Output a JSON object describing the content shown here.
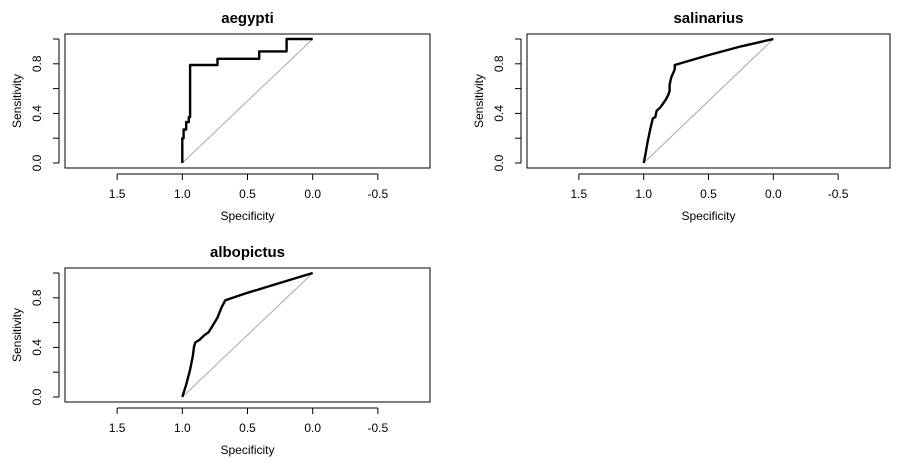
{
  "chart_data": [
    {
      "type": "line",
      "title": "aegypti",
      "xlabel": "Specificity",
      "ylabel": "Sensitivity",
      "x_reversed": true,
      "xlim": [
        1.9,
        -0.9
      ],
      "ylim": [
        0,
        1
      ],
      "x_ticks": [
        "1.5",
        "1.0",
        "0.5",
        "0.0",
        "-0.5"
      ],
      "y_ticks": [
        "0.0",
        "0.4",
        "0.8"
      ],
      "x_tick_values": [
        1.5,
        1.0,
        0.5,
        0.0,
        -0.5
      ],
      "y_tick_values": [
        0.0,
        0.4,
        0.8
      ],
      "reference_line": [
        [
          1,
          0
        ],
        [
          0,
          1
        ]
      ],
      "series": [
        {
          "points": [
            [
              1.0,
              0.0
            ],
            [
              1.0,
              0.2
            ],
            [
              0.99,
              0.2
            ],
            [
              0.99,
              0.27
            ],
            [
              0.97,
              0.27
            ],
            [
              0.97,
              0.33
            ],
            [
              0.95,
              0.33
            ],
            [
              0.95,
              0.37
            ],
            [
              0.94,
              0.37
            ],
            [
              0.94,
              0.79
            ],
            [
              0.73,
              0.79
            ],
            [
              0.73,
              0.84
            ],
            [
              0.41,
              0.84
            ],
            [
              0.41,
              0.9
            ],
            [
              0.2,
              0.9
            ],
            [
              0.2,
              1.0
            ],
            [
              0.0,
              1.0
            ]
          ]
        }
      ]
    },
    {
      "type": "line",
      "title": "salinarius",
      "xlabel": "Specificity",
      "ylabel": "Sensitivity",
      "x_reversed": true,
      "xlim": [
        1.9,
        -0.9
      ],
      "ylim": [
        0,
        1
      ],
      "x_ticks": [
        "1.5",
        "1.0",
        "0.5",
        "0.0",
        "-0.5"
      ],
      "y_ticks": [
        "0.0",
        "0.4",
        "0.8"
      ],
      "x_tick_values": [
        1.5,
        1.0,
        0.5,
        0.0,
        -0.5
      ],
      "y_tick_values": [
        0.0,
        0.4,
        0.8
      ],
      "reference_line": [
        [
          1,
          0
        ],
        [
          0,
          1
        ]
      ],
      "series": [
        {
          "points": [
            [
              1.0,
              0.0
            ],
            [
              0.99,
              0.05
            ],
            [
              0.97,
              0.17
            ],
            [
              0.95,
              0.27
            ],
            [
              0.93,
              0.36
            ],
            [
              0.91,
              0.37
            ],
            [
              0.9,
              0.42
            ],
            [
              0.87,
              0.45
            ],
            [
              0.85,
              0.48
            ],
            [
              0.83,
              0.51
            ],
            [
              0.81,
              0.55
            ],
            [
              0.8,
              0.58
            ],
            [
              0.8,
              0.63
            ],
            [
              0.79,
              0.68
            ],
            [
              0.78,
              0.71
            ],
            [
              0.77,
              0.73
            ],
            [
              0.76,
              0.76
            ],
            [
              0.76,
              0.79
            ],
            [
              0.5,
              0.87
            ],
            [
              0.25,
              0.94
            ],
            [
              0.0,
              1.0
            ]
          ]
        }
      ]
    },
    {
      "type": "line",
      "title": "albopictus",
      "xlabel": "Specificity",
      "ylabel": "Sensitivity",
      "x_reversed": true,
      "xlim": [
        1.9,
        -0.9
      ],
      "ylim": [
        0,
        1
      ],
      "x_ticks": [
        "1.5",
        "1.0",
        "0.5",
        "0.0",
        "-0.5"
      ],
      "y_ticks": [
        "0.0",
        "0.4",
        "0.8"
      ],
      "x_tick_values": [
        1.5,
        1.0,
        0.5,
        0.0,
        -0.5
      ],
      "y_tick_values": [
        0.0,
        0.4,
        0.8
      ],
      "reference_line": [
        [
          1,
          0
        ],
        [
          0,
          1
        ]
      ],
      "series": [
        {
          "points": [
            [
              1.0,
              0.0
            ],
            [
              0.97,
              0.1
            ],
            [
              0.94,
              0.22
            ],
            [
              0.92,
              0.33
            ],
            [
              0.91,
              0.41
            ],
            [
              0.9,
              0.44
            ],
            [
              0.87,
              0.46
            ],
            [
              0.83,
              0.5
            ],
            [
              0.8,
              0.52
            ],
            [
              0.77,
              0.57
            ],
            [
              0.73,
              0.64
            ],
            [
              0.7,
              0.72
            ],
            [
              0.67,
              0.78
            ],
            [
              0.5,
              0.84
            ],
            [
              0.25,
              0.92
            ],
            [
              0.0,
              1.0
            ]
          ]
        }
      ]
    }
  ]
}
